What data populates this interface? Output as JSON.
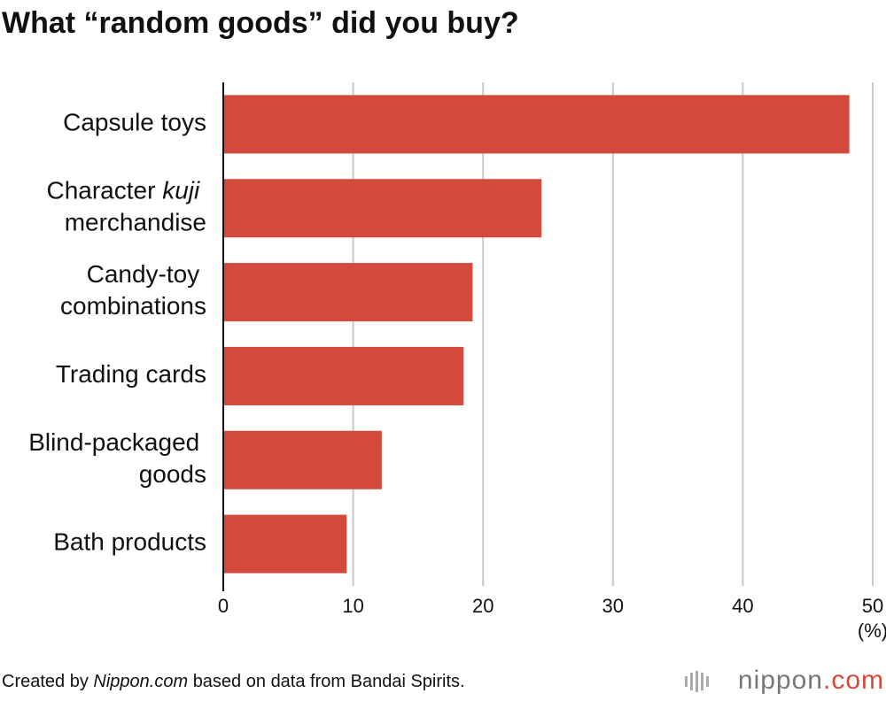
{
  "chart_data": {
    "type": "barh",
    "title": "What “random goods” did you buy?",
    "categories": [
      "Capsule toys",
      "Character kuji merchandise",
      "Candy-toy combinations",
      "Trading cards",
      "Blind-packaged goods",
      "Bath products"
    ],
    "italic_words": [
      "kuji"
    ],
    "values": [
      48.2,
      24.5,
      19.2,
      18.5,
      12.2,
      9.5
    ],
    "color": "#d34a3c",
    "xlim": [
      0,
      50
    ],
    "xticks": [
      0,
      10,
      20,
      30,
      40,
      50
    ],
    "x_label": "(%)",
    "grid": true
  },
  "footer": {
    "source": "Created by Nippon.com based on data from Bandai Spirits.",
    "italic_words": [
      "Nippon.com"
    ],
    "logo": "nippon.com"
  }
}
